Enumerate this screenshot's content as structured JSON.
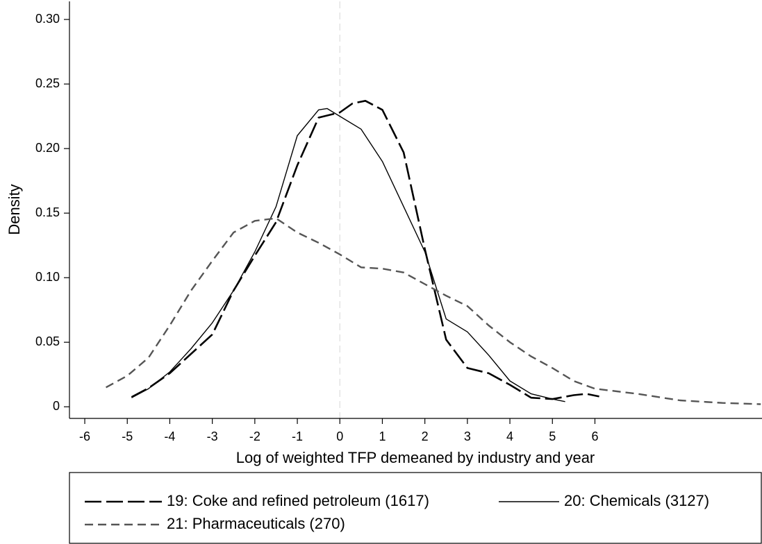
{
  "chart_data": {
    "type": "line",
    "xlabel": "Log of weighted TFP demeaned by industry and year",
    "ylabel": "Density",
    "xlim": [
      -6.36,
      9.93
    ],
    "ylim": [
      -0.009,
      0.314
    ],
    "xticks": [
      -6,
      -5,
      -4,
      -3,
      -2,
      -1,
      0,
      1,
      2,
      3,
      4,
      5,
      6
    ],
    "yticks": [
      0,
      0.05,
      {
        "value": 0.1,
        "label": "0.10"
      },
      0.15,
      {
        "value": 0.2,
        "label": "0.20"
      },
      0.25,
      {
        "value": 0.3,
        "label": "0.30"
      }
    ],
    "vline": 0,
    "series": [
      {
        "name": "19: Coke and refined petroleum (1617)",
        "color": "#000000",
        "style": "long-dash",
        "x": [
          -4.9,
          -4.5,
          -4,
          -3.5,
          -3,
          -2.5,
          -2,
          -1.5,
          -1,
          -0.5,
          0,
          0.3,
          0.6,
          1,
          1.5,
          2,
          2.5,
          3,
          3.5,
          4,
          4.5,
          5,
          5.5,
          5.8,
          6.1
        ],
        "values": [
          0.0075,
          0.0145,
          0.026,
          0.041,
          0.056,
          0.09,
          0.117,
          0.143,
          0.187,
          0.224,
          0.228,
          0.235,
          0.237,
          0.23,
          0.197,
          0.122,
          0.052,
          0.03,
          0.026,
          0.017,
          0.007,
          0.006,
          0.009,
          0.01,
          0.008
        ]
      },
      {
        "name": "20: Chemicals (3127)",
        "color": "#000000",
        "style": "solid",
        "x": [
          -4.9,
          -4.5,
          -4,
          -3.5,
          -3,
          -2.5,
          -2,
          -1.5,
          -1,
          -0.5,
          -0.3,
          0,
          0.5,
          1,
          1.5,
          2,
          2.5,
          3,
          3.5,
          4,
          4.5,
          5,
          5.3
        ],
        "values": [
          0.007,
          0.014,
          0.027,
          0.045,
          0.065,
          0.09,
          0.12,
          0.155,
          0.21,
          0.23,
          0.231,
          0.225,
          0.215,
          0.19,
          0.155,
          0.12,
          0.068,
          0.058,
          0.04,
          0.02,
          0.01,
          0.006,
          0.004
        ]
      },
      {
        "name": "21: Pharmaceuticals (270)",
        "color": "#555555",
        "style": "short-dash",
        "x": [
          -5.5,
          -5,
          -4.5,
          -4,
          -3.5,
          -3,
          -2.5,
          -2,
          -1.5,
          -1,
          -0.5,
          0,
          0.5,
          1,
          1.5,
          2,
          2.5,
          3,
          3.5,
          4,
          4.5,
          5,
          5.5,
          6,
          7,
          8,
          9,
          9.9
        ],
        "values": [
          0.015,
          0.024,
          0.038,
          0.063,
          0.09,
          0.113,
          0.135,
          0.144,
          0.146,
          0.135,
          0.127,
          0.118,
          0.108,
          0.107,
          0.104,
          0.095,
          0.086,
          0.078,
          0.063,
          0.05,
          0.039,
          0.03,
          0.02,
          0.014,
          0.01,
          0.005,
          0.003,
          0.002
        ]
      }
    ]
  }
}
